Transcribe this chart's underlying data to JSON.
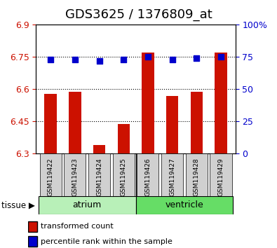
{
  "title": "GDS3625 / 1376809_at",
  "samples": [
    "GSM119422",
    "GSM119423",
    "GSM119424",
    "GSM119425",
    "GSM119426",
    "GSM119427",
    "GSM119428",
    "GSM119429"
  ],
  "red_values": [
    6.58,
    6.59,
    6.34,
    6.44,
    6.77,
    6.57,
    6.59,
    6.77
  ],
  "blue_values": [
    73,
    73,
    72,
    73,
    75,
    73,
    74,
    75
  ],
  "ylim_left": [
    6.3,
    6.9
  ],
  "ylim_right": [
    0,
    100
  ],
  "yticks_left": [
    6.3,
    6.45,
    6.6,
    6.75,
    6.9
  ],
  "yticks_right": [
    0,
    25,
    50,
    75,
    100
  ],
  "ytick_labels_left": [
    "6.3",
    "6.45",
    "6.6",
    "6.75",
    "6.9"
  ],
  "ytick_labels_right": [
    "0",
    "25",
    "50",
    "75",
    "100%"
  ],
  "hlines": [
    6.45,
    6.6,
    6.75
  ],
  "tissue_groups": [
    {
      "label": "atrium",
      "start": 0,
      "end": 3,
      "color": "#b8f0b8"
    },
    {
      "label": "ventricle",
      "start": 4,
      "end": 7,
      "color": "#66dd66"
    }
  ],
  "bar_color": "#cc1100",
  "dot_color": "#0000cc",
  "bar_bottom": 6.3,
  "bar_width": 0.5,
  "dot_size": 40,
  "legend_red": "transformed count",
  "legend_blue": "percentile rank within the sample",
  "tissue_label": "tissue",
  "left_tick_color": "#cc1100",
  "right_tick_color": "#0000cc",
  "title_fontsize": 13,
  "tick_fontsize": 9,
  "label_fontsize": 9
}
